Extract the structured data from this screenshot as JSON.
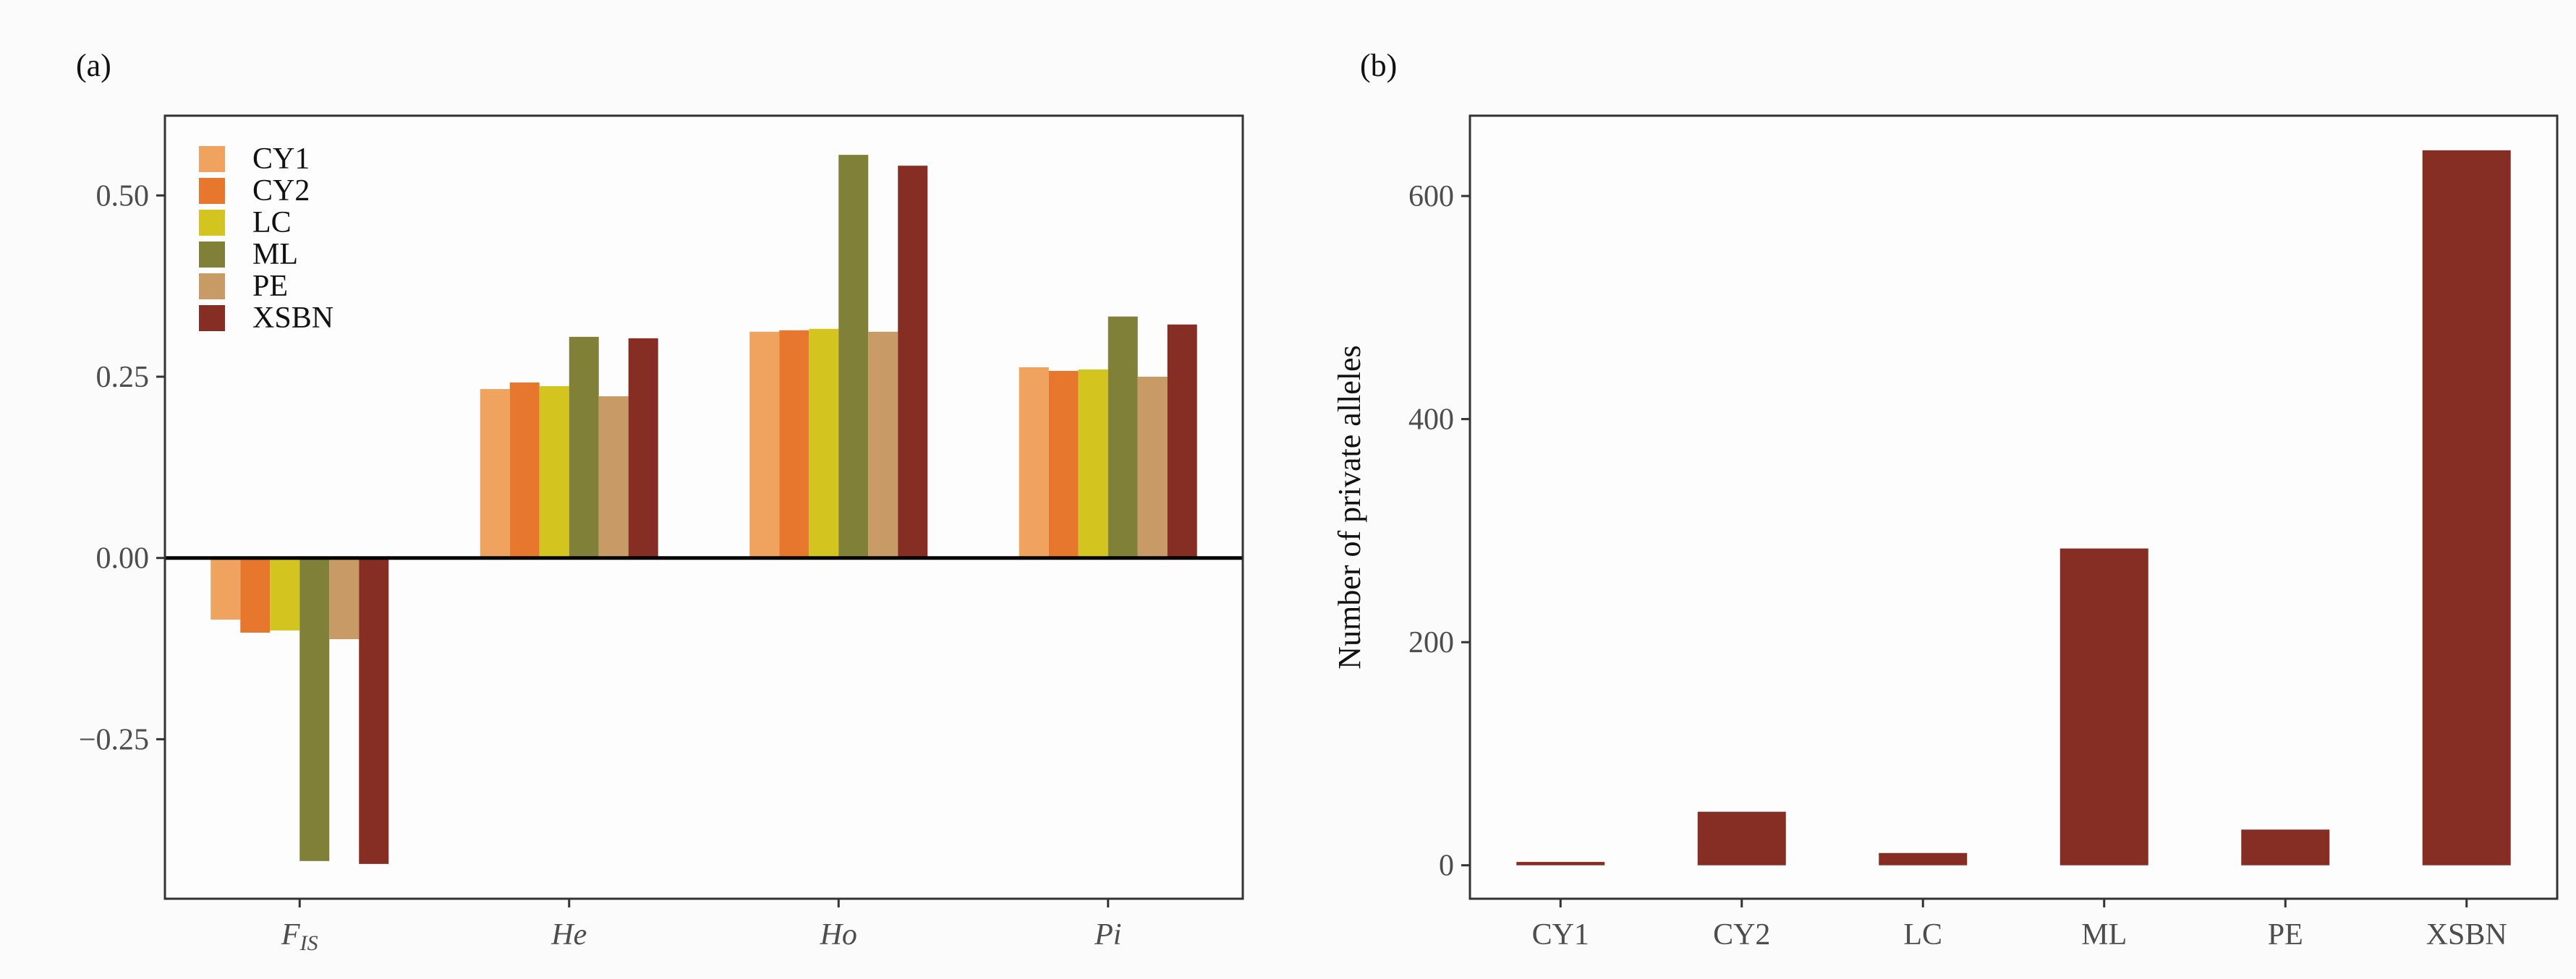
{
  "figure": {
    "panel_a_label": "(a)",
    "panel_b_label": "(b)"
  },
  "chart_data": [
    {
      "type": "bar",
      "panel": "(a)",
      "categories": [
        {
          "main": "F",
          "sub": "IS"
        },
        {
          "main": "He",
          "sub": ""
        },
        {
          "main": "Ho",
          "sub": ""
        },
        {
          "main": "Pi",
          "sub": ""
        }
      ],
      "series": [
        {
          "name": "CY1",
          "color": "#F0A35E",
          "values": [
            -0.085,
            0.233,
            0.312,
            0.263
          ]
        },
        {
          "name": "CY2",
          "color": "#E8772E",
          "values": [
            -0.103,
            0.242,
            0.314,
            0.258
          ]
        },
        {
          "name": "LC",
          "color": "#D4C41F",
          "values": [
            -0.1,
            0.237,
            0.316,
            0.26
          ]
        },
        {
          "name": "ML",
          "color": "#808038",
          "values": [
            -0.418,
            0.305,
            0.556,
            0.333
          ]
        },
        {
          "name": "PE",
          "color": "#C89A66",
          "values": [
            -0.112,
            0.223,
            0.312,
            0.25
          ]
        },
        {
          "name": "XSBN",
          "color": "#862E24",
          "values": [
            -0.422,
            0.303,
            0.541,
            0.322
          ]
        }
      ],
      "ylim": [
        -0.47,
        0.61
      ],
      "yticks": [
        -0.25,
        0.0,
        0.25,
        0.5
      ],
      "ytick_labels": [
        "−0.25",
        "0.00",
        "0.25",
        "0.50"
      ],
      "zero_line": true,
      "xlabel": "",
      "ylabel": "",
      "legend_position": "top-left"
    },
    {
      "type": "bar",
      "panel": "(b)",
      "categories": [
        "CY1",
        "CY2",
        "LC",
        "ML",
        "PE",
        "XSBN"
      ],
      "values": [
        3,
        48,
        11,
        284,
        32,
        641
      ],
      "color": "#862E24",
      "ylim": [
        -30,
        672
      ],
      "yticks": [
        0,
        200,
        400,
        600
      ],
      "ytick_labels": [
        "0",
        "200",
        "400",
        "600"
      ],
      "xlabel": "",
      "ylabel": "Number of private alleles"
    }
  ]
}
